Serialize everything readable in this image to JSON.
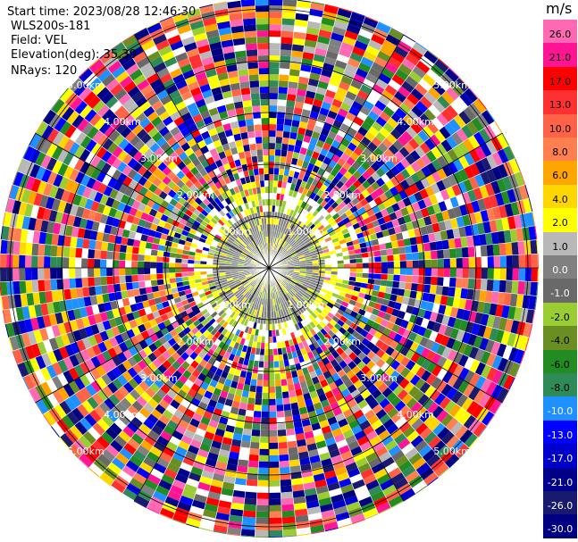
{
  "header": {
    "start_time": "Start time: 2023/08/28 12:46:30",
    "instrument": "WLS200s-181",
    "field": "Field: VEL",
    "elevation": "Elevation(deg): 35.30",
    "nrays": "NRays: 120"
  },
  "colorbar": {
    "unit": "m/s",
    "labels": [
      "26.0",
      "21.0",
      "17.0",
      "13.0",
      "10.0",
      "8.0",
      "6.0",
      "4.0",
      "2.0",
      "1.0",
      "0.0",
      "-1.0",
      "-2.0",
      "-4.0",
      "-6.0",
      "-8.0",
      "-10.0",
      "-13.0",
      "-17.0",
      "-21.0",
      "-26.0",
      "-30.0"
    ],
    "colors": [
      "#ff69b4",
      "#ff1493",
      "#ff0000",
      "#ff3030",
      "#ff6347",
      "#ff7f50",
      "#ffa500",
      "#ffd700",
      "#ffff00",
      "#b8b8b8",
      "#808080",
      "#696969",
      "#9acd32",
      "#6b8e23",
      "#228b22",
      "#2e8b57",
      "#1e90ff",
      "#0000ff",
      "#0000cd",
      "#00008b",
      "#191970",
      "#000080"
    ]
  },
  "chart_data": {
    "type": "heatmap",
    "projection": "polar (PPI)",
    "field": "VEL",
    "units": "m/s",
    "n_rays": 120,
    "range_ring_labels_km": [
      "1.00km",
      "2.00km",
      "3.00km",
      "4.00km",
      "5.00km"
    ],
    "color_scale_min": -30.0,
    "color_scale_max": 26.0,
    "near_field_velocity_m_s": [
      -1.0,
      1.0
    ]
  }
}
